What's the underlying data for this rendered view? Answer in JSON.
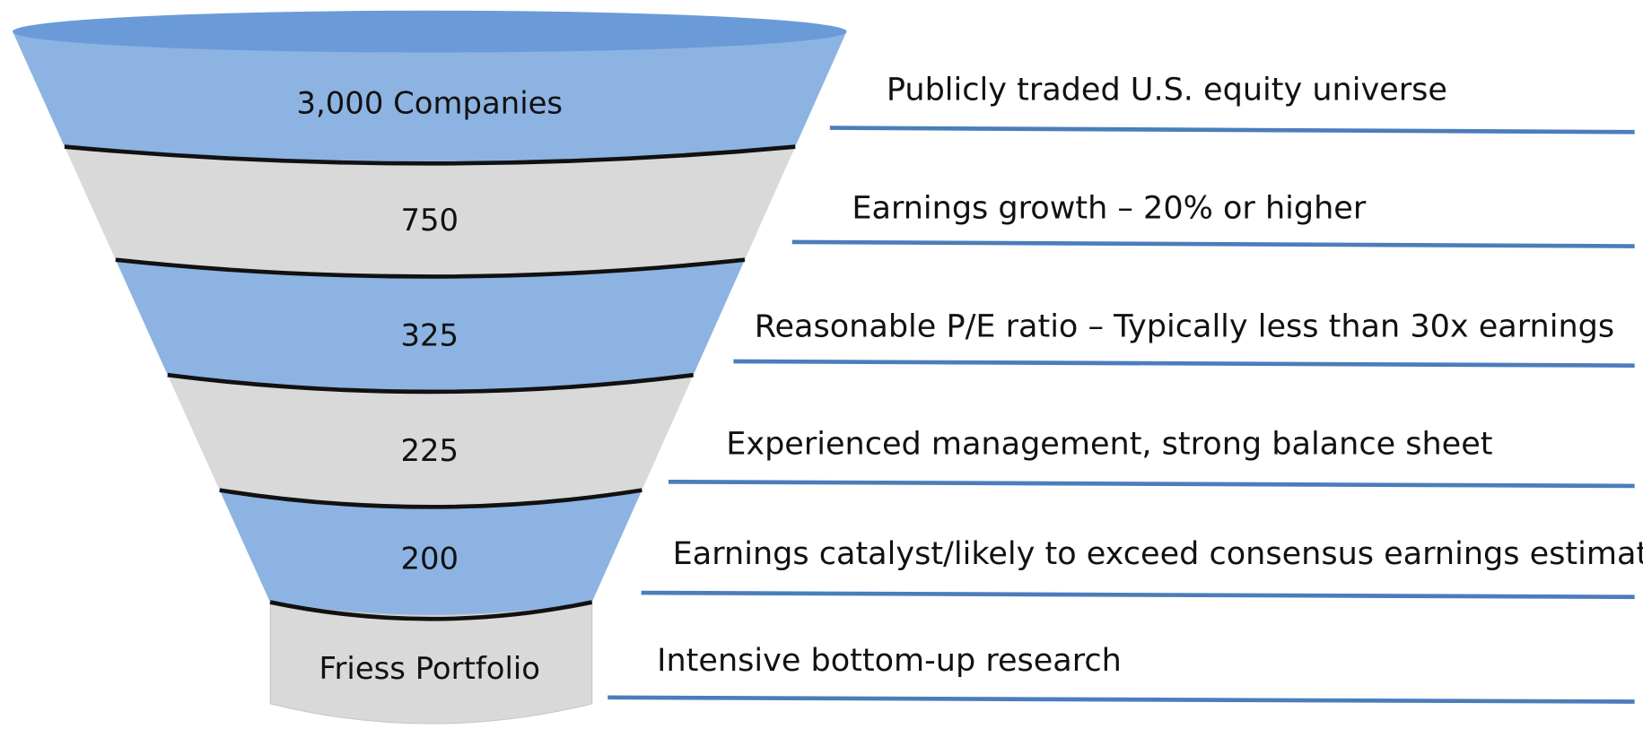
{
  "stages": [
    {
      "label": "3,000 Companies",
      "description": "Publicly traded U.S. equity universe"
    },
    {
      "label": "750",
      "description": "Earnings growth – 20% or higher"
    },
    {
      "label": "325",
      "description": "Reasonable P/E ratio – Typically less than 30x earnings"
    },
    {
      "label": "225",
      "description": "Experienced management, strong balance sheet"
    },
    {
      "label": "200",
      "description": "Earnings catalyst/likely to exceed consensus earnings estimate"
    },
    {
      "label": "Friess Portfolio",
      "description": "Intensive bottom-up research"
    }
  ]
}
